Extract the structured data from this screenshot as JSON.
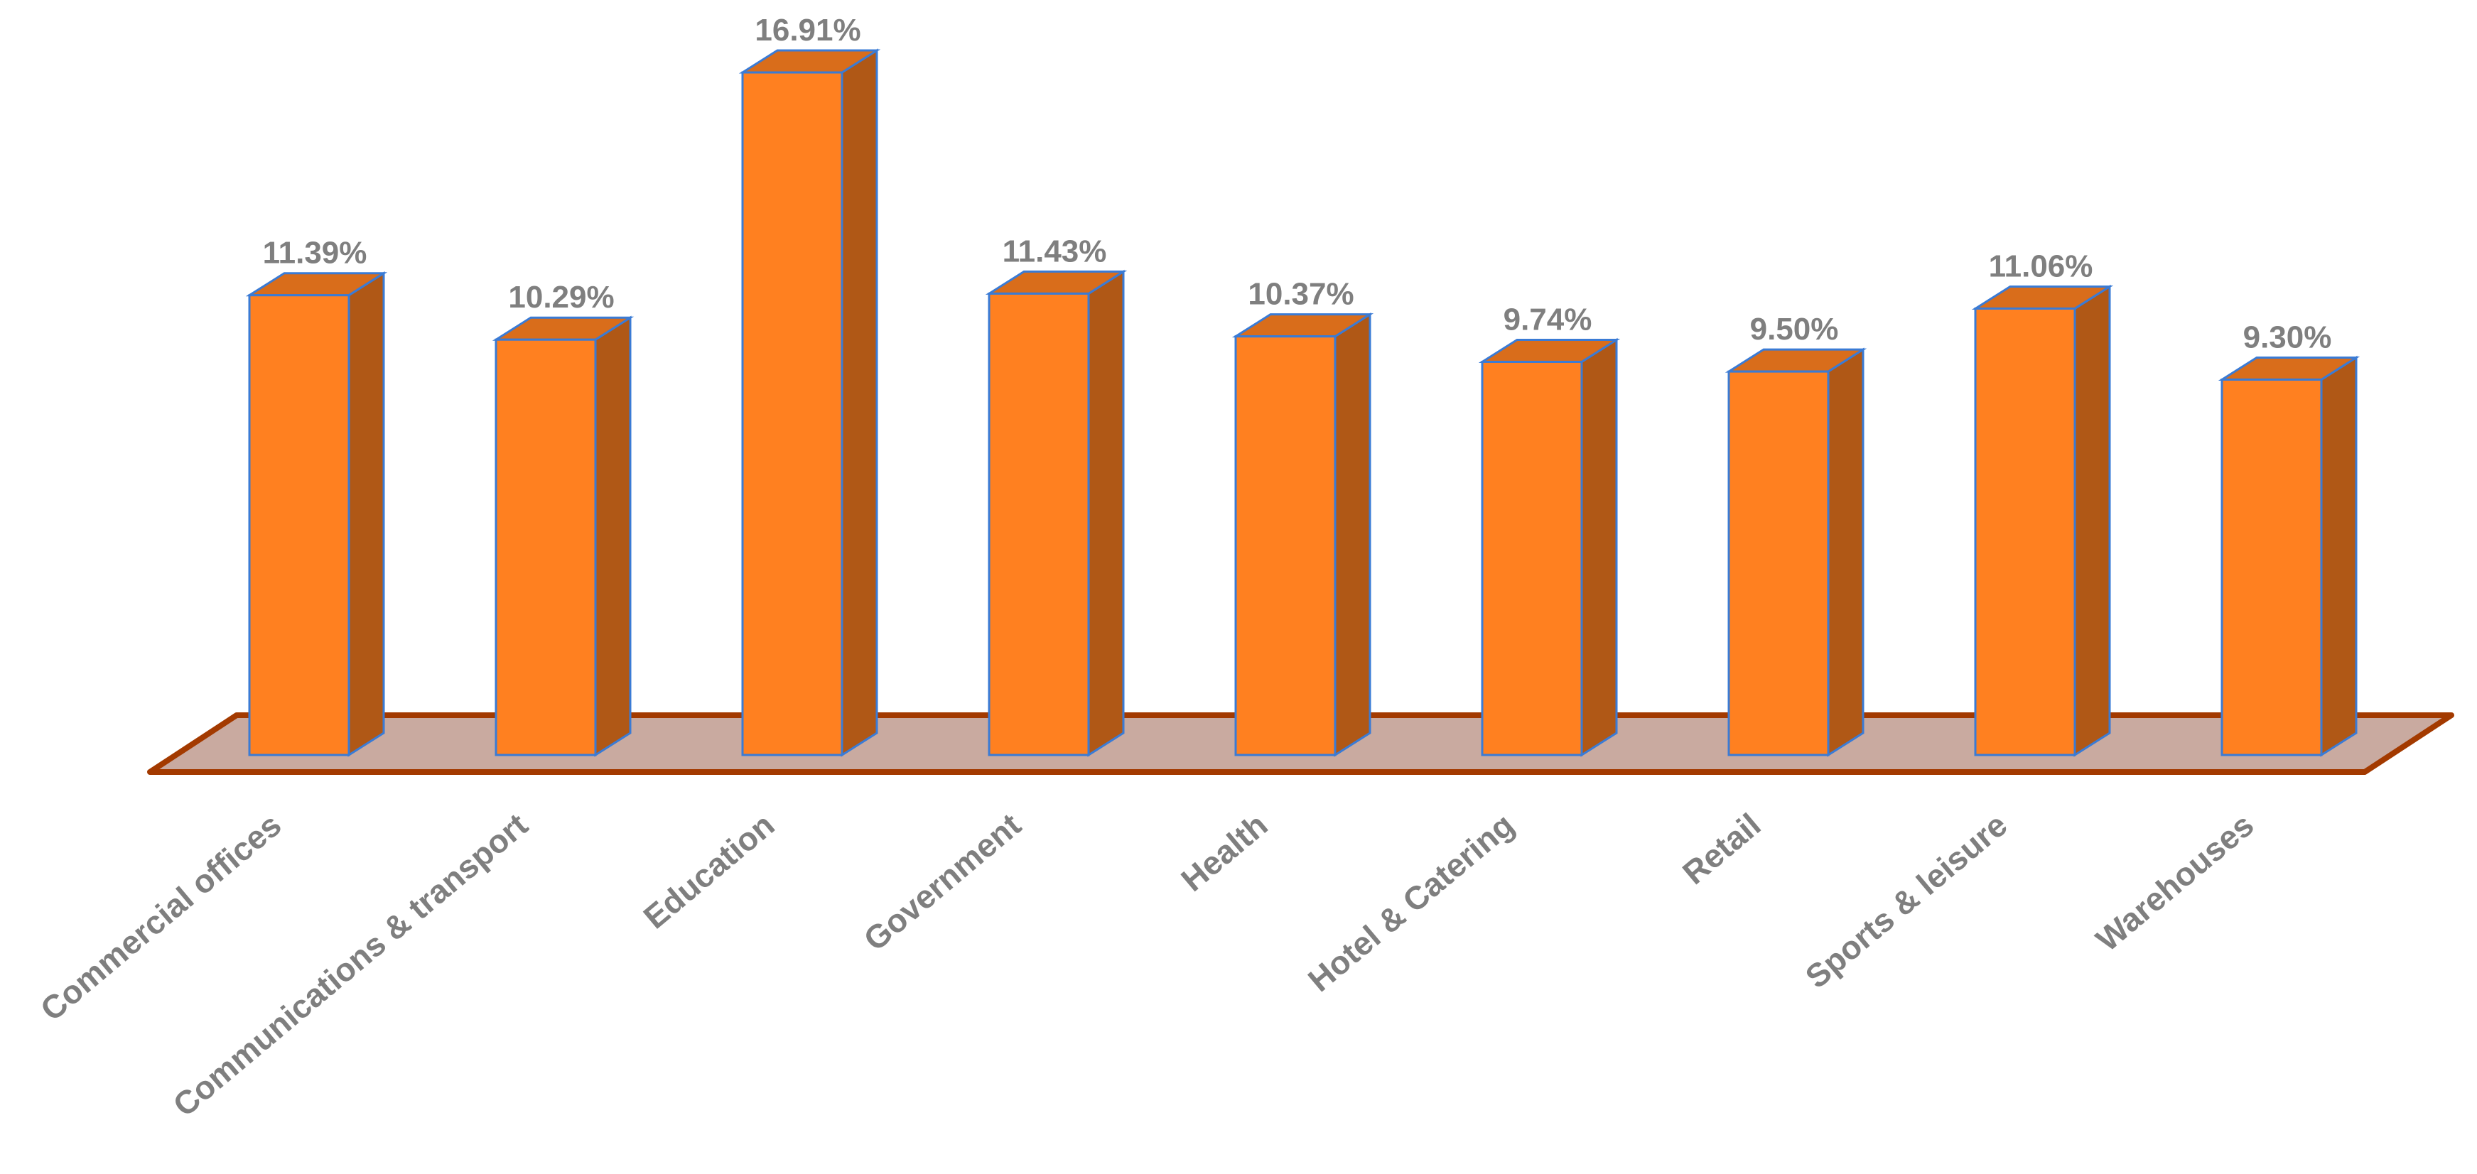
{
  "chart_data": {
    "type": "bar3d",
    "categories": [
      "Commercial offices",
      "Communications & transport",
      "Education",
      "Government",
      "Health",
      "Hotel & Catering",
      "Retail",
      "Sports & leisure",
      "Warehouses"
    ],
    "values": [
      11.39,
      10.29,
      16.91,
      11.43,
      10.37,
      9.74,
      9.5,
      11.06,
      9.3
    ],
    "value_labels": [
      "11.39%",
      "10.29%",
      "16.91%",
      "11.43%",
      "10.37%",
      "9.74%",
      "9.50%",
      "11.06%",
      "9.30%"
    ],
    "color": "#ff8020"
  }
}
